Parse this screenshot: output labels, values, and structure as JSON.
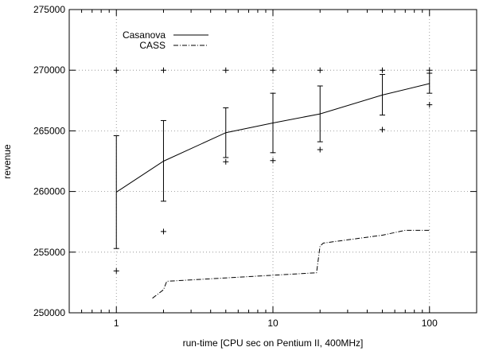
{
  "chart_data": {
    "type": "line",
    "xlabel": "run-time [CPU sec on Pentium II, 400MHz]",
    "ylabel": "revenue",
    "xscale": "log",
    "xlim": [
      0.5,
      200
    ],
    "ylim": [
      250000,
      275000
    ],
    "xticks": [
      1,
      10,
      100
    ],
    "xtick_labels": [
      "1",
      "10",
      "100"
    ],
    "yticks": [
      250000,
      255000,
      260000,
      265000,
      270000,
      275000
    ],
    "ytick_labels": [
      "250000",
      "255000",
      "260000",
      "265000",
      "270000",
      "275000"
    ],
    "grid": true,
    "legend": "top-left",
    "series": [
      {
        "name": "Casanova",
        "style": "solid",
        "color": "#000000",
        "x": [
          1,
          2,
          5,
          10,
          20,
          50,
          100
        ],
        "y": [
          259950,
          262500,
          264850,
          265650,
          266400,
          267950,
          268900
        ],
        "error_low": [
          255300,
          259200,
          262800,
          263200,
          264100,
          266300,
          268100
        ],
        "error_high": [
          264600,
          265850,
          266900,
          268100,
          268700,
          269650,
          269750
        ],
        "extremes": [
          {
            "x": 1,
            "y": 270000
          },
          {
            "x": 1,
            "y": 253450
          },
          {
            "x": 2,
            "y": 270000
          },
          {
            "x": 2,
            "y": 256700
          },
          {
            "x": 5,
            "y": 270000
          },
          {
            "x": 5,
            "y": 262450
          },
          {
            "x": 10,
            "y": 270000
          },
          {
            "x": 10,
            "y": 262550
          },
          {
            "x": 20,
            "y": 270000
          },
          {
            "x": 20,
            "y": 263450
          },
          {
            "x": 50,
            "y": 270000
          },
          {
            "x": 50,
            "y": 265100
          },
          {
            "x": 100,
            "y": 270000
          },
          {
            "x": 100,
            "y": 267150
          }
        ]
      },
      {
        "name": "CASS",
        "style": "dash-dot",
        "color": "#000000",
        "x": [
          1.7,
          2,
          2.1,
          19,
          20,
          21,
          50,
          70,
          100
        ],
        "y": [
          251200,
          251900,
          252600,
          253300,
          255500,
          255750,
          256400,
          256800,
          256800
        ]
      }
    ]
  }
}
